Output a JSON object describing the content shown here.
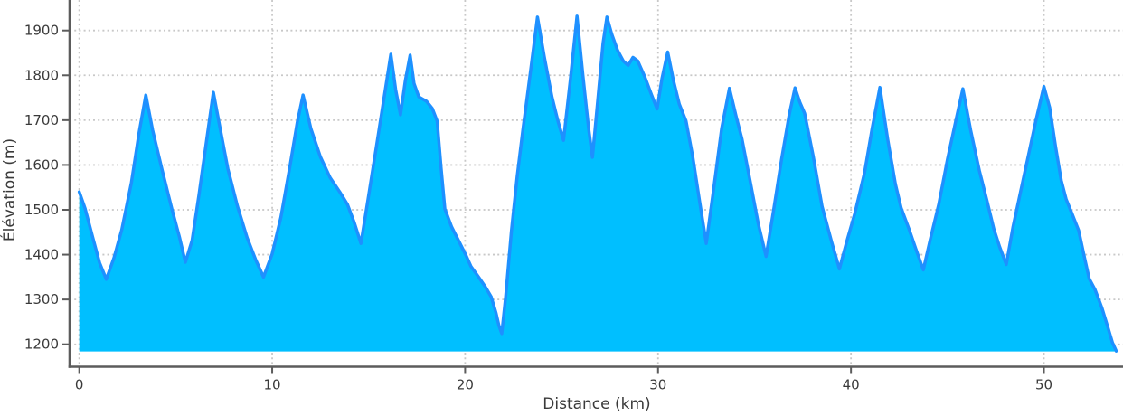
{
  "figure": {
    "background": "#ffffff",
    "text_color": "#3a3a3a",
    "spine_color": "#5c5c5c",
    "grid_color": "#c8c8c8"
  },
  "chart_data": {
    "type": "area",
    "title": "",
    "xlabel": "Distance (km)",
    "ylabel": "Élévation (m)",
    "x_ticks": [
      0,
      10,
      20,
      30,
      40,
      50
    ],
    "y_ticks": [
      1200,
      1300,
      1400,
      1500,
      1600,
      1700,
      1800,
      1900
    ],
    "xlim": [
      -0.5,
      54.1
    ],
    "ylim": [
      1150,
      1968
    ],
    "grid": "dotted",
    "legend_position": "none",
    "series": [
      {
        "name": "elevation-profile",
        "line_color": "#1E90FF",
        "fill_color": "#00BFFF",
        "baseline_m": 1184,
        "points": [
          [
            0.0,
            1540
          ],
          [
            0.3,
            1503
          ],
          [
            0.7,
            1438
          ],
          [
            1.05,
            1382
          ],
          [
            1.4,
            1345
          ],
          [
            1.8,
            1393
          ],
          [
            2.2,
            1455
          ],
          [
            2.7,
            1560
          ],
          [
            3.1,
            1672
          ],
          [
            3.45,
            1756
          ],
          [
            3.8,
            1678
          ],
          [
            4.3,
            1588
          ],
          [
            4.8,
            1502
          ],
          [
            5.2,
            1438
          ],
          [
            5.5,
            1383
          ],
          [
            5.85,
            1432
          ],
          [
            6.2,
            1532
          ],
          [
            6.6,
            1655
          ],
          [
            6.95,
            1762
          ],
          [
            7.3,
            1682
          ],
          [
            7.7,
            1592
          ],
          [
            8.2,
            1508
          ],
          [
            8.7,
            1438
          ],
          [
            9.15,
            1388
          ],
          [
            9.55,
            1350
          ],
          [
            10.0,
            1402
          ],
          [
            10.45,
            1483
          ],
          [
            10.9,
            1592
          ],
          [
            11.3,
            1695
          ],
          [
            11.6,
            1756
          ],
          [
            12.0,
            1682
          ],
          [
            12.5,
            1618
          ],
          [
            13.0,
            1572
          ],
          [
            13.5,
            1540
          ],
          [
            13.9,
            1512
          ],
          [
            14.25,
            1472
          ],
          [
            14.6,
            1425
          ],
          [
            15.0,
            1532
          ],
          [
            15.5,
            1668
          ],
          [
            15.9,
            1778
          ],
          [
            16.15,
            1847
          ],
          [
            16.4,
            1768
          ],
          [
            16.65,
            1712
          ],
          [
            16.9,
            1788
          ],
          [
            17.15,
            1845
          ],
          [
            17.35,
            1782
          ],
          [
            17.6,
            1752
          ],
          [
            18.0,
            1742
          ],
          [
            18.3,
            1726
          ],
          [
            18.55,
            1698
          ],
          [
            18.75,
            1595
          ],
          [
            18.95,
            1502
          ],
          [
            19.3,
            1462
          ],
          [
            19.7,
            1428
          ],
          [
            20.05,
            1398
          ],
          [
            20.3,
            1374
          ],
          [
            20.7,
            1350
          ],
          [
            21.05,
            1328
          ],
          [
            21.35,
            1306
          ],
          [
            21.6,
            1270
          ],
          [
            21.75,
            1242
          ],
          [
            21.9,
            1224
          ],
          [
            22.1,
            1305
          ],
          [
            22.4,
            1452
          ],
          [
            22.7,
            1575
          ],
          [
            23.0,
            1680
          ],
          [
            23.4,
            1812
          ],
          [
            23.75,
            1930
          ],
          [
            24.1,
            1842
          ],
          [
            24.5,
            1752
          ],
          [
            24.8,
            1700
          ],
          [
            25.1,
            1655
          ],
          [
            25.45,
            1788
          ],
          [
            25.8,
            1932
          ],
          [
            26.1,
            1802
          ],
          [
            26.4,
            1682
          ],
          [
            26.6,
            1617
          ],
          [
            26.9,
            1755
          ],
          [
            27.15,
            1872
          ],
          [
            27.35,
            1930
          ],
          [
            27.6,
            1892
          ],
          [
            27.9,
            1856
          ],
          [
            28.2,
            1832
          ],
          [
            28.45,
            1822
          ],
          [
            28.7,
            1840
          ],
          [
            28.95,
            1832
          ],
          [
            29.3,
            1798
          ],
          [
            29.65,
            1758
          ],
          [
            29.95,
            1725
          ],
          [
            30.2,
            1792
          ],
          [
            30.5,
            1852
          ],
          [
            30.8,
            1788
          ],
          [
            31.1,
            1736
          ],
          [
            31.45,
            1698
          ],
          [
            31.8,
            1618
          ],
          [
            32.15,
            1520
          ],
          [
            32.5,
            1425
          ],
          [
            32.9,
            1552
          ],
          [
            33.3,
            1682
          ],
          [
            33.7,
            1771
          ],
          [
            34.05,
            1708
          ],
          [
            34.35,
            1658
          ],
          [
            34.8,
            1558
          ],
          [
            35.2,
            1468
          ],
          [
            35.6,
            1396
          ],
          [
            36.0,
            1502
          ],
          [
            36.4,
            1612
          ],
          [
            36.8,
            1712
          ],
          [
            37.1,
            1772
          ],
          [
            37.35,
            1740
          ],
          [
            37.6,
            1715
          ],
          [
            38.05,
            1618
          ],
          [
            38.5,
            1508
          ],
          [
            39.0,
            1428
          ],
          [
            39.4,
            1368
          ],
          [
            39.8,
            1432
          ],
          [
            40.2,
            1492
          ],
          [
            40.7,
            1582
          ],
          [
            41.1,
            1682
          ],
          [
            41.5,
            1773
          ],
          [
            41.9,
            1658
          ],
          [
            42.3,
            1558
          ],
          [
            42.6,
            1504
          ],
          [
            43.0,
            1458
          ],
          [
            43.4,
            1408
          ],
          [
            43.75,
            1366
          ],
          [
            44.1,
            1432
          ],
          [
            44.55,
            1512
          ],
          [
            45.0,
            1612
          ],
          [
            45.4,
            1692
          ],
          [
            45.8,
            1770
          ],
          [
            46.2,
            1678
          ],
          [
            46.65,
            1588
          ],
          [
            47.05,
            1520
          ],
          [
            47.4,
            1458
          ],
          [
            47.7,
            1418
          ],
          [
            48.05,
            1378
          ],
          [
            48.4,
            1462
          ],
          [
            48.8,
            1542
          ],
          [
            49.2,
            1622
          ],
          [
            49.6,
            1702
          ],
          [
            50.0,
            1775
          ],
          [
            50.3,
            1728
          ],
          [
            50.6,
            1642
          ],
          [
            50.9,
            1565
          ],
          [
            51.15,
            1524
          ],
          [
            51.45,
            1492
          ],
          [
            51.8,
            1454
          ],
          [
            52.1,
            1394
          ],
          [
            52.35,
            1346
          ],
          [
            52.65,
            1322
          ],
          [
            53.0,
            1282
          ],
          [
            53.3,
            1240
          ],
          [
            53.55,
            1204
          ],
          [
            53.75,
            1185
          ]
        ]
      }
    ]
  }
}
